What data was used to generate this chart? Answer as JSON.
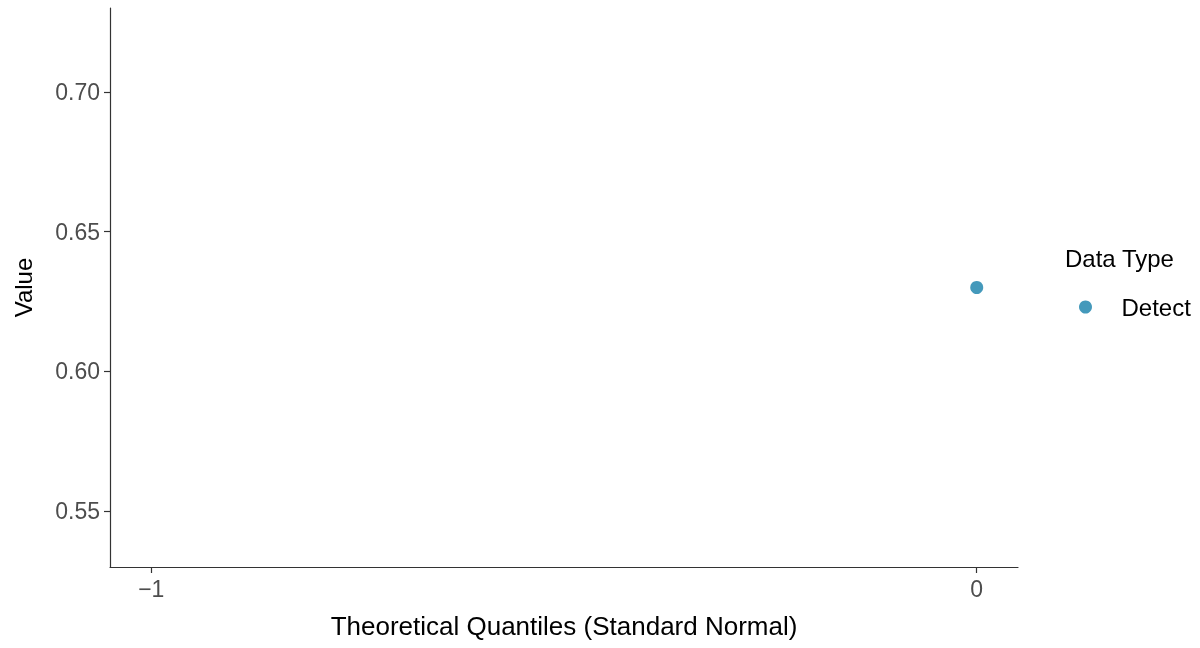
{
  "chart_data": {
    "type": "scatter",
    "xlabel": "Theoretical Quantiles (Standard Normal)",
    "ylabel": "Value",
    "legend_title": "Data Type",
    "series": [
      {
        "name": "Detect",
        "color": "#4499bb",
        "x": [
          0
        ],
        "values": [
          0.63
        ]
      }
    ],
    "xlim": [
      -1.05,
      0.05
    ],
    "xticks": [
      {
        "value": -1,
        "label": "−1"
      },
      0
    ],
    "ylim": [
      0.53,
      0.73
    ],
    "yticks": [
      {
        "value": 0.55,
        "label": "0.55"
      },
      {
        "value": 0.6,
        "label": "0.60"
      },
      {
        "value": 0.65,
        "label": "0.65"
      },
      {
        "value": 0.7,
        "label": "0.70"
      }
    ],
    "grid": false,
    "legend": "right",
    "marker": "circle"
  }
}
